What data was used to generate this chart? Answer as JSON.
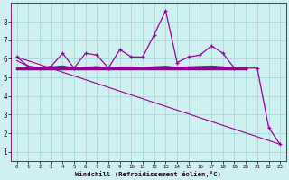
{
  "xlabel": "Windchill (Refroidissement éolien,°C)",
  "background_color": "#cff0f0",
  "line_color": "#990099",
  "grid_color": "#aadddd",
  "xlim": [
    -0.5,
    23.5
  ],
  "ylim": [
    0.5,
    9.0
  ],
  "yticks": [
    1,
    2,
    3,
    4,
    5,
    6,
    7,
    8
  ],
  "xticks": [
    0,
    1,
    2,
    3,
    4,
    5,
    6,
    7,
    8,
    9,
    10,
    11,
    12,
    13,
    14,
    15,
    16,
    17,
    18,
    19,
    20,
    21,
    22,
    23
  ],
  "series1_x": [
    0,
    1,
    2,
    3,
    4,
    5,
    6,
    7,
    8,
    9,
    10,
    11,
    12,
    13,
    14,
    15,
    16,
    17,
    18,
    19,
    20,
    21,
    22,
    23
  ],
  "series1_y": [
    6.1,
    5.6,
    5.5,
    5.6,
    6.3,
    5.5,
    6.3,
    6.2,
    5.5,
    6.5,
    6.1,
    6.1,
    7.3,
    8.6,
    5.8,
    6.1,
    6.2,
    6.7,
    6.3,
    5.5,
    5.5,
    5.5,
    2.3,
    1.4
  ],
  "series2_x": [
    0,
    20
  ],
  "series2_y": [
    5.5,
    5.5
  ],
  "series3_x": [
    0,
    23
  ],
  "series3_y": [
    6.1,
    1.4
  ],
  "series4_x": [
    0,
    1,
    2,
    3,
    4,
    5,
    6,
    7,
    8,
    9,
    10,
    11,
    12,
    13,
    14,
    15,
    16,
    17,
    18,
    19,
    20
  ],
  "series4_y": [
    5.9,
    5.6,
    5.52,
    5.56,
    5.62,
    5.5,
    5.55,
    5.58,
    5.52,
    5.56,
    5.56,
    5.53,
    5.57,
    5.6,
    5.54,
    5.57,
    5.59,
    5.61,
    5.57,
    5.5,
    5.5
  ]
}
